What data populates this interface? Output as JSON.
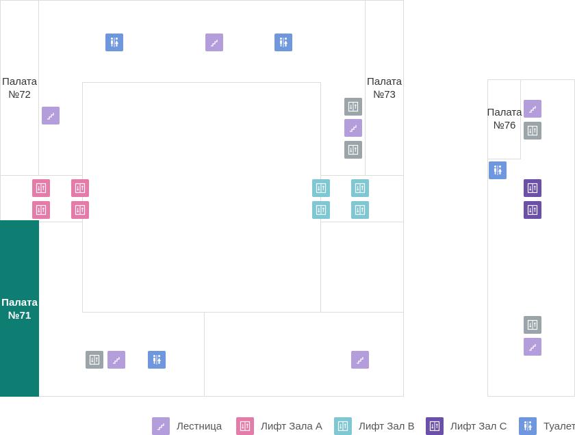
{
  "rooms": {
    "r72": {
      "label_line1": "Палата",
      "label_line2": "№72"
    },
    "r73": {
      "label_line1": "Палата",
      "label_line2": "№73"
    },
    "r71": {
      "label_line1": "Палата",
      "label_line2": "№71"
    },
    "r76": {
      "label_line1": "Палата",
      "label_line2": "№76"
    }
  },
  "colors": {
    "stairs": "#b39ddb",
    "lift_a": "#e57ba9",
    "lift_b": "#7ec7d3",
    "lift_c": "#6b4fa8",
    "toilet": "#6f97de",
    "lift_gray": "#9aa4a9",
    "room_71_fill": "#0e7d72"
  },
  "legend": [
    {
      "icon": "stairs-icon",
      "label": "Лестница"
    },
    {
      "icon": "lift-icon",
      "label": "Лифт Зала A"
    },
    {
      "icon": "lift-icon",
      "label": "Лифт Зал B"
    },
    {
      "icon": "lift-icon",
      "label": "Лифт Зал C"
    },
    {
      "icon": "toilet-icon",
      "label": "Туалет"
    }
  ]
}
